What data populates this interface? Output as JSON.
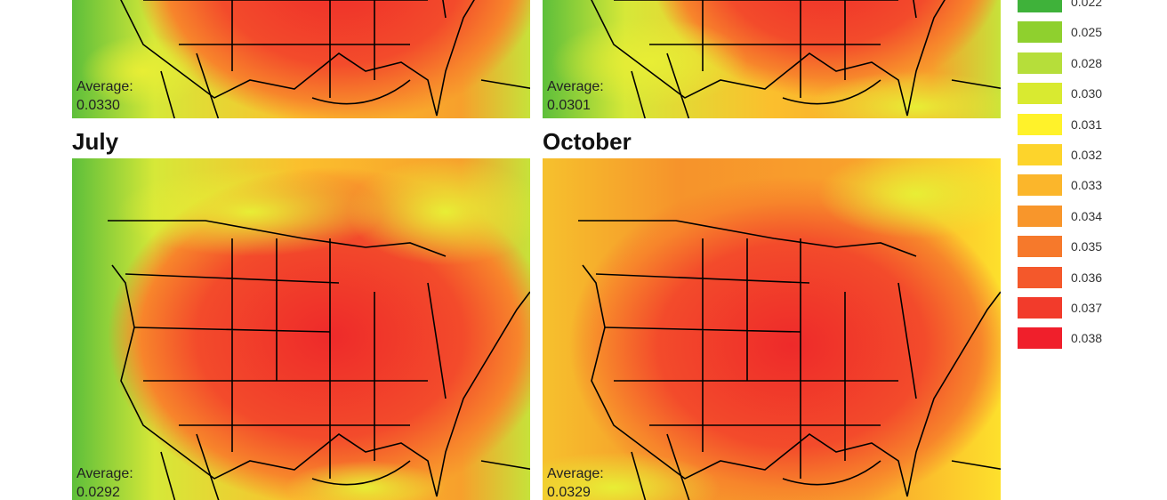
{
  "panels": [
    {
      "average_label": "Average:",
      "average": "0.0330"
    },
    {
      "average_label": "Average:",
      "average": "0.0301"
    },
    {
      "title": "July",
      "average_label": "Average:",
      "average": "0.0292"
    },
    {
      "title": "October",
      "average_label": "Average:",
      "average": "0.0329"
    }
  ],
  "legend": {
    "items": [
      {
        "label": "0.022",
        "color": "#3fb23a"
      },
      {
        "label": "0.025",
        "color": "#8fd02e"
      },
      {
        "label": "0.028",
        "color": "#b6de3a"
      },
      {
        "label": "0.030",
        "color": "#d9ea30"
      },
      {
        "label": "0.031",
        "color": "#fff22a"
      },
      {
        "label": "0.032",
        "color": "#fdd42b"
      },
      {
        "label": "0.033",
        "color": "#fbb62b"
      },
      {
        "label": "0.034",
        "color": "#f8962b"
      },
      {
        "label": "0.035",
        "color": "#f6792b"
      },
      {
        "label": "0.036",
        "color": "#f4582b"
      },
      {
        "label": "0.037",
        "color": "#f23b2b"
      },
      {
        "label": "0.038",
        "color": "#f01f2b"
      }
    ]
  }
}
